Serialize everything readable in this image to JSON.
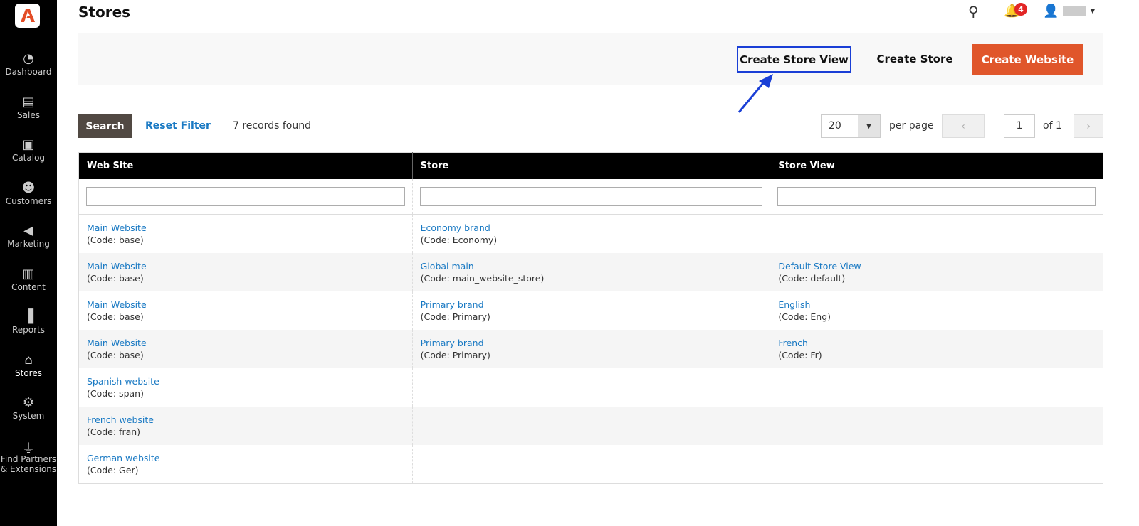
{
  "sidebar": {
    "items": [
      {
        "label": "Dashboard",
        "icon": "dashboard-icon"
      },
      {
        "label": "Sales",
        "icon": "dollar-icon"
      },
      {
        "label": "Catalog",
        "icon": "box-icon"
      },
      {
        "label": "Customers",
        "icon": "users-icon"
      },
      {
        "label": "Marketing",
        "icon": "megaphone-icon"
      },
      {
        "label": "Content",
        "icon": "layout-icon"
      },
      {
        "label": "Reports",
        "icon": "bar-chart-icon"
      },
      {
        "label": "Stores",
        "icon": "store-icon",
        "active": true
      },
      {
        "label": "System",
        "icon": "gear-icon"
      },
      {
        "label": "Find Partners & Extensions",
        "icon": "plug-icon"
      }
    ]
  },
  "header": {
    "title": "Stores",
    "notification_count": "4"
  },
  "actions": {
    "create_store_view": "Create Store View",
    "create_store": "Create Store",
    "create_website": "Create Website"
  },
  "colors": {
    "accent": "#eb5202",
    "link": "#1979c3",
    "highlight": "#1a3fd6"
  },
  "toolbar": {
    "search": "Search",
    "reset": "Reset Filter",
    "records": "7 records found",
    "per_page_value": "20",
    "per_page_label": "per page",
    "page": "1",
    "of": "of 1"
  },
  "table": {
    "columns": [
      "Web Site",
      "Store",
      "Store View"
    ],
    "rows": [
      [
        [
          "Main Website",
          "(Code: base)"
        ],
        [
          "Economy brand",
          "(Code: Economy)"
        ],
        [
          "",
          ""
        ]
      ],
      [
        [
          "Main Website",
          "(Code: base)"
        ],
        [
          "Global main",
          "(Code: main_website_store)"
        ],
        [
          "Default Store View",
          "(Code: default)"
        ]
      ],
      [
        [
          "Main Website",
          "(Code: base)"
        ],
        [
          "Primary brand",
          "(Code: Primary)"
        ],
        [
          "English",
          "(Code: Eng)"
        ]
      ],
      [
        [
          "Main Website",
          "(Code: base)"
        ],
        [
          "Primary brand",
          "(Code: Primary)"
        ],
        [
          "French",
          "(Code: Fr)"
        ]
      ],
      [
        [
          "Spanish website",
          "(Code: span)"
        ],
        [
          "",
          ""
        ],
        [
          "",
          ""
        ]
      ],
      [
        [
          "French website",
          "(Code: fran)"
        ],
        [
          "",
          ""
        ],
        [
          "",
          ""
        ]
      ],
      [
        [
          "German website",
          "(Code: Ger)"
        ],
        [
          "",
          ""
        ],
        [
          "",
          ""
        ]
      ]
    ]
  }
}
